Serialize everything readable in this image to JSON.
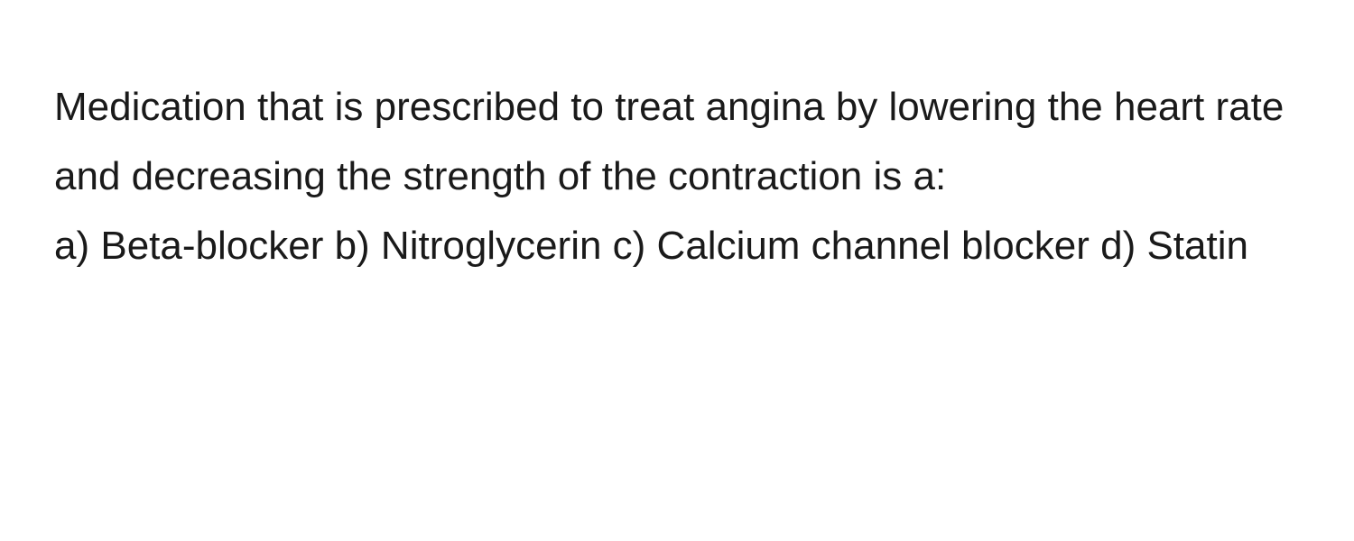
{
  "question": {
    "prompt": "Medication that is prescribed to treat angina by lowering the heart rate and decreasing the strength of the contraction is a:",
    "options_text": "a) Beta-blocker b) Nitroglycerin c) Calcium channel blocker d) Statin",
    "options": [
      {
        "key": "a",
        "label": "Beta-blocker"
      },
      {
        "key": "b",
        "label": "Nitroglycerin"
      },
      {
        "key": "c",
        "label": "Calcium channel blocker"
      },
      {
        "key": "d",
        "label": "Statin"
      }
    ]
  },
  "styling": {
    "background_color": "#ffffff",
    "text_color": "#1a1a1a",
    "font_size_pt": 33,
    "line_height": 1.75,
    "font_weight": 400,
    "font_family": "-apple-system, BlinkMacSystemFont, Segoe UI, Helvetica, Arial, sans-serif"
  }
}
